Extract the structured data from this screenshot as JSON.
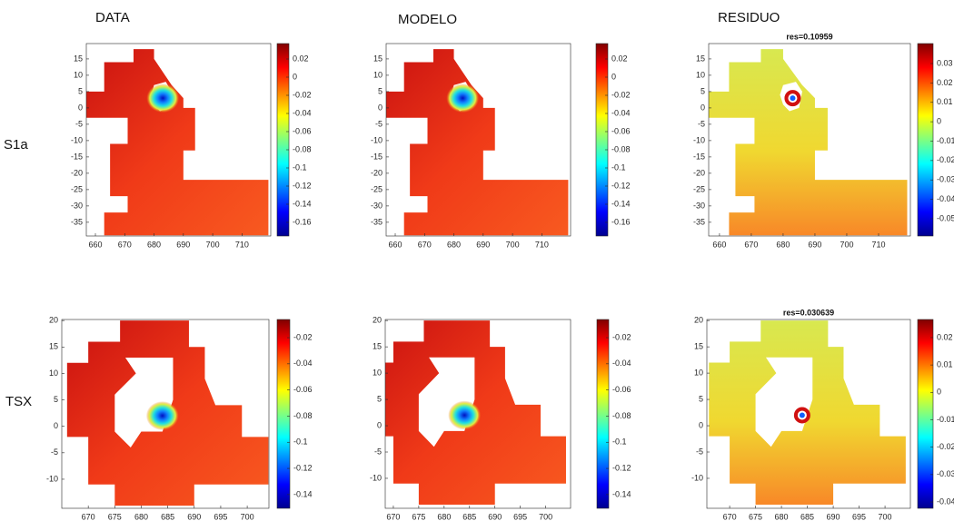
{
  "column_titles": [
    "DATA",
    "MODELO",
    "RESIDUO"
  ],
  "row_labels": [
    "S1a",
    "TSX"
  ],
  "chart_data": [
    {
      "type": "heatmap",
      "xlim": [
        656.9,
        719.8
      ],
      "ylim": [
        -39.2,
        19.7
      ],
      "xticks": [
        660,
        670,
        680,
        690,
        700,
        710
      ],
      "yticks": [
        15,
        10,
        5,
        0,
        -5,
        -10,
        -15,
        -20,
        -25,
        -30,
        -35
      ],
      "clim": [
        -0.175,
        0.037
      ],
      "cticks": [
        0.02,
        0,
        -0.02,
        -0.04,
        -0.06,
        -0.08,
        -0.1,
        -0.12,
        -0.14,
        -0.16
      ]
    },
    {
      "type": "heatmap",
      "xlim": [
        656.9,
        719.8
      ],
      "ylim": [
        -39.2,
        19.7
      ],
      "xticks": [
        660,
        670,
        680,
        690,
        700,
        710
      ],
      "yticks": [
        15,
        10,
        5,
        0,
        -5,
        -10,
        -15,
        -20,
        -25,
        -30,
        -35
      ],
      "clim": [
        -0.175,
        0.037
      ],
      "cticks": [
        0.02,
        0,
        -0.02,
        -0.04,
        -0.06,
        -0.08,
        -0.1,
        -0.12,
        -0.14,
        -0.16
      ]
    },
    {
      "type": "heatmap",
      "title": "res=0.10959",
      "xlim": [
        656.6,
        720
      ],
      "ylim": [
        -39.2,
        19.7
      ],
      "xticks": [
        660,
        670,
        680,
        690,
        700,
        710
      ],
      "yticks": [
        15,
        10,
        5,
        0,
        -5,
        -10,
        -15,
        -20,
        -25,
        -30,
        -35
      ],
      "clim": [
        -0.0589,
        0.0403
      ],
      "cticks": [
        0.03,
        0.02,
        0.01,
        0,
        -0.01,
        -0.02,
        -0.03,
        -0.04,
        -0.05
      ]
    },
    {
      "type": "heatmap",
      "xlim": [
        665,
        704.1
      ],
      "ylim": [
        -15.5,
        20.2
      ],
      "xticks": [
        670,
        675,
        680,
        685,
        690,
        695,
        700
      ],
      "yticks": [
        20,
        15,
        10,
        5,
        0,
        -5,
        -10
      ],
      "clim": [
        -0.1505,
        -0.0061
      ],
      "cticks": [
        -0.02,
        -0.04,
        -0.06,
        -0.08,
        -0.1,
        -0.12,
        -0.14
      ]
    },
    {
      "type": "heatmap",
      "xlim": [
        668.4,
        704.9
      ],
      "ylim": [
        -15.7,
        20.2
      ],
      "xticks": [
        670,
        675,
        680,
        685,
        690,
        695,
        700
      ],
      "yticks": [
        20,
        15,
        10,
        5,
        0,
        -5,
        -10
      ],
      "clim": [
        -0.1505,
        -0.0061
      ],
      "cticks": [
        -0.02,
        -0.04,
        -0.06,
        -0.08,
        -0.1,
        -0.12,
        -0.14
      ]
    },
    {
      "type": "heatmap",
      "title": "res=0.030639",
      "xlim": [
        665.6,
        704.9
      ],
      "ylim": [
        -15.7,
        20.2
      ],
      "xticks": [
        670,
        675,
        680,
        685,
        690,
        695,
        700
      ],
      "yticks": [
        20,
        15,
        10,
        5,
        0,
        -5,
        -10
      ],
      "clim": [
        -0.0423,
        0.0266
      ],
      "cticks": [
        0.02,
        0.01,
        0,
        -0.01,
        -0.02,
        -0.03,
        -0.04
      ]
    }
  ]
}
